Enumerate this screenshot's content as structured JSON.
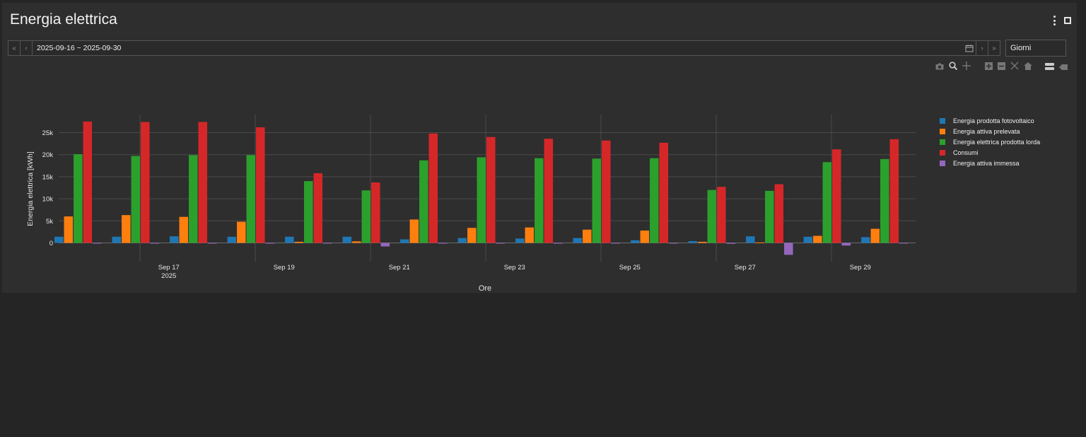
{
  "card": {
    "title": "Energia elettrica",
    "menu_icon": "more-vertical-icon",
    "fullscreen_icon": "fullscreen-icon"
  },
  "range": {
    "first_label": "«",
    "prev_label": "‹",
    "value": "2025-09-16 ~ 2025-09-30",
    "next_label": "›",
    "last_label": "»",
    "calendar_icon": "calendar-icon"
  },
  "period": {
    "value": "Giorni"
  },
  "modebar": [
    "camera-icon",
    "zoom-icon",
    "pan-icon",
    "zoom-in-icon",
    "zoom-out-icon",
    "autoscale-icon",
    "reset-axes-icon",
    "spike-lines-icon",
    "compare-hover-icon"
  ],
  "chart_data": {
    "type": "bar",
    "xlabel": "Ore",
    "ylabel": "Energia elettrica [kWh]",
    "ylim": [
      -3000,
      29000
    ],
    "yticks": [
      0,
      5000,
      10000,
      15000,
      20000,
      25000
    ],
    "ytick_labels": [
      "0",
      "5k",
      "10k",
      "15k",
      "20k",
      "25k"
    ],
    "xtick_labels": [
      {
        "day": 17,
        "label": "Sep 17",
        "sub": "2025"
      },
      {
        "day": 19,
        "label": "Sep 19",
        "sub": ""
      },
      {
        "day": 21,
        "label": "Sep 21",
        "sub": ""
      },
      {
        "day": 23,
        "label": "Sep 23",
        "sub": ""
      },
      {
        "day": 25,
        "label": "Sep 25",
        "sub": ""
      },
      {
        "day": 27,
        "label": "Sep 27",
        "sub": ""
      },
      {
        "day": 29,
        "label": "Sep 29",
        "sub": ""
      }
    ],
    "grid": true,
    "legend_position": "right",
    "categories": [
      "2025-09-16",
      "2025-09-17",
      "2025-09-18",
      "2025-09-19",
      "2025-09-20",
      "2025-09-21",
      "2025-09-22",
      "2025-09-23",
      "2025-09-24",
      "2025-09-25",
      "2025-09-26",
      "2025-09-27",
      "2025-09-28",
      "2025-09-29",
      "2025-09-30"
    ],
    "series": [
      {
        "name": "Energia prodotta fotovoltaico",
        "color": "#1f77b4",
        "values": [
          1400,
          1400,
          1500,
          1400,
          1400,
          1400,
          800,
          1100,
          1000,
          1100,
          600,
          400,
          1500,
          1400,
          1300
        ]
      },
      {
        "name": "Energia attiva prelevata",
        "color": "#ff7f0e",
        "values": [
          6000,
          6300,
          5900,
          4800,
          250,
          350,
          5300,
          3400,
          3500,
          3000,
          2800,
          250,
          100,
          1600,
          3200
        ]
      },
      {
        "name": "Energia elettrica prodotta lorda",
        "color": "#2ca02c",
        "values": [
          20100,
          19700,
          19900,
          19900,
          14000,
          11900,
          18700,
          19400,
          19200,
          19100,
          19200,
          12000,
          11800,
          18300,
          19000
        ]
      },
      {
        "name": "Consumi",
        "color": "#d62728",
        "values": [
          27500,
          27400,
          27400,
          26200,
          15800,
          13700,
          24800,
          24000,
          23600,
          23200,
          22700,
          12700,
          13300,
          21200,
          23500
        ]
      },
      {
        "name": "Energia attiva immessa",
        "color": "#9467bd",
        "values": [
          -100,
          -100,
          -100,
          -100,
          -100,
          -800,
          -100,
          -100,
          -100,
          -100,
          -100,
          -200,
          -2700,
          -600,
          -100
        ]
      }
    ]
  }
}
